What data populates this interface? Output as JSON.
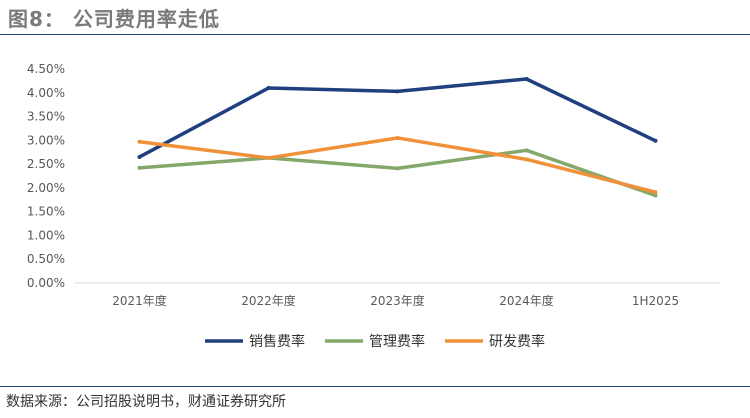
{
  "figure": {
    "title": "图8：  公司费用率走低",
    "source": "数据来源：公司招股说明书，财通证券研究所"
  },
  "chart_data": {
    "type": "line",
    "title": "",
    "xlabel": "",
    "ylabel": "",
    "categories": [
      "2021年度",
      "2022年度",
      "2023年度",
      "2024年度",
      "1H2025"
    ],
    "ylim": [
      0,
      4.5
    ],
    "y_ticks": [
      "0.00%",
      "0.50%",
      "1.00%",
      "1.50%",
      "2.00%",
      "2.50%",
      "3.00%",
      "3.50%",
      "4.00%",
      "4.50%"
    ],
    "grid": false,
    "legend_position": "bottom",
    "series": [
      {
        "name": "销售费率",
        "color": "#1f3f7f",
        "values": [
          2.65,
          4.1,
          4.03,
          4.29,
          2.99
        ]
      },
      {
        "name": "管理费率",
        "color": "#84a86b",
        "values": [
          2.42,
          2.63,
          2.41,
          2.79,
          1.84
        ]
      },
      {
        "name": "研发费率",
        "color": "#f0913a",
        "values": [
          2.97,
          2.63,
          3.05,
          2.6,
          1.91
        ]
      }
    ]
  }
}
